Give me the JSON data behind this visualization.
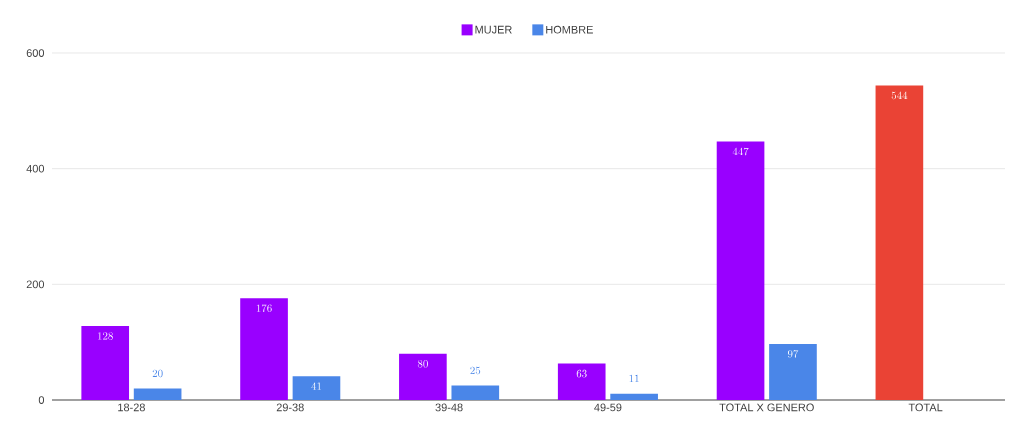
{
  "chart_data": {
    "type": "bar",
    "categories": [
      "18-28",
      "29-38",
      "39-48",
      "49-59",
      "TOTAL X GENERO",
      "TOTAL"
    ],
    "series": [
      {
        "name": "MUJER",
        "color": "#9900ff",
        "colors": [
          "#9900ff",
          "#9900ff",
          "#9900ff",
          "#9900ff",
          "#9900ff",
          "#ea4335"
        ],
        "values": [
          128,
          176,
          80,
          63,
          447,
          544
        ]
      },
      {
        "name": "HOMBRE",
        "color": "#4a86e8",
        "values": [
          20,
          41,
          25,
          11,
          97,
          null
        ]
      }
    ],
    "ylim": [
      0,
      600
    ],
    "yticks": [
      0,
      200,
      400,
      600
    ],
    "grid": "y",
    "legend": "top",
    "data_labels": true
  }
}
